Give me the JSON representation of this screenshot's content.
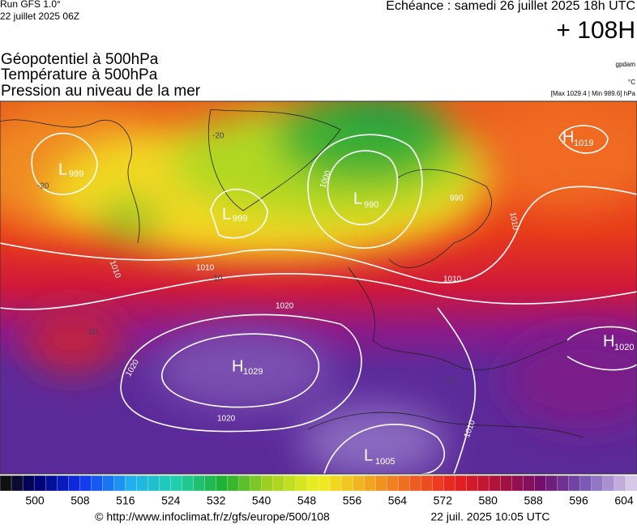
{
  "header": {
    "run": "Run GFS 1.0°",
    "run_date": "22 juillet 2025 06Z",
    "valid_time": "Echéance : samedi 26 juillet 2025 18h UTC",
    "lead": "+ 108H"
  },
  "layers": [
    "Géopotentiel à 500hPa",
    "Température à 500hPa",
    "Pression au niveau de la mer"
  ],
  "units": {
    "geopotential": "gpdam",
    "temperature": "°C",
    "pressure": "[Max 1029.4 | Min 989.6] hPa"
  },
  "centers": [
    {
      "letter": "L",
      "value": "999"
    },
    {
      "letter": "L",
      "value": "999"
    },
    {
      "letter": "L",
      "value": "990"
    },
    {
      "letter": "H",
      "value": "1019"
    },
    {
      "letter": "H",
      "value": "1029"
    },
    {
      "letter": "H",
      "value": "1020"
    },
    {
      "letter": "L",
      "value": "1005"
    }
  ],
  "isobar_labels": [
    "1000",
    "990",
    "1010",
    "1010",
    "1020",
    "1020",
    "1020",
    "1010",
    "1010",
    "1010"
  ],
  "temperature_labels": [
    "-20",
    "-20",
    "-10",
    "-10",
    "-10"
  ],
  "colorbar": {
    "ticks": [
      "500",
      "508",
      "516",
      "524",
      "532",
      "540",
      "548",
      "556",
      "564",
      "572",
      "580",
      "588",
      "596",
      "604"
    ]
  },
  "footer": {
    "source": "© http://www.infoclimat.fr/z/gfs/europe/500/108",
    "generated": "22 juil. 2025 10:05 UTC"
  }
}
